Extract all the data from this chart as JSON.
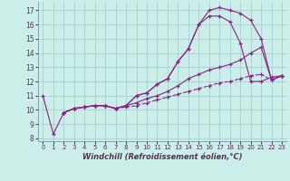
{
  "xlabel": "Windchill (Refroidissement éolien,°C)",
  "bg_color": "#cceee8",
  "line_color": "#882288",
  "grid_color": "#99cccc",
  "xlim": [
    -0.5,
    23.5
  ],
  "ylim": [
    7.8,
    17.6
  ],
  "yticks": [
    8,
    9,
    10,
    11,
    12,
    13,
    14,
    15,
    16,
    17
  ],
  "xticks": [
    0,
    1,
    2,
    3,
    4,
    5,
    6,
    7,
    8,
    9,
    10,
    11,
    12,
    13,
    14,
    15,
    16,
    17,
    18,
    19,
    20,
    21,
    22,
    23
  ],
  "series": [
    {
      "x": [
        0,
        1,
        2,
        3,
        4,
        5,
        6,
        7,
        8,
        9,
        10,
        11,
        12,
        13,
        14,
        15,
        16,
        17,
        18,
        19,
        20,
        21,
        22,
        23
      ],
      "y": [
        11.0,
        8.3,
        9.8,
        10.1,
        10.2,
        10.3,
        10.3,
        10.1,
        10.3,
        11.0,
        11.2,
        11.8,
        12.2,
        13.4,
        14.3,
        16.0,
        17.0,
        17.2,
        17.0,
        16.8,
        16.3,
        15.0,
        12.1,
        12.4
      ],
      "style": "solid"
    },
    {
      "x": [
        2,
        3,
        4,
        5,
        6,
        7,
        8,
        9,
        10,
        11,
        12,
        13,
        14,
        15,
        16,
        17,
        18,
        19,
        20,
        21,
        22,
        23
      ],
      "y": [
        9.8,
        10.1,
        10.2,
        10.3,
        10.3,
        10.1,
        10.3,
        11.0,
        11.2,
        11.8,
        12.2,
        13.4,
        14.3,
        16.0,
        16.6,
        16.6,
        16.2,
        14.7,
        12.0,
        12.0,
        12.3,
        12.4
      ],
      "style": "solid"
    },
    {
      "x": [
        2,
        3,
        4,
        5,
        6,
        7,
        8,
        9,
        10,
        11,
        12,
        13,
        14,
        15,
        16,
        17,
        18,
        19,
        20,
        21,
        22,
        23
      ],
      "y": [
        9.8,
        10.1,
        10.2,
        10.3,
        10.3,
        10.1,
        10.3,
        10.5,
        10.8,
        11.0,
        11.3,
        11.7,
        12.2,
        12.5,
        12.8,
        13.0,
        13.2,
        13.5,
        14.0,
        14.4,
        12.1,
        12.4
      ],
      "style": "solid"
    },
    {
      "x": [
        2,
        3,
        4,
        5,
        6,
        7,
        8,
        9,
        10,
        11,
        12,
        13,
        14,
        15,
        16,
        17,
        18,
        19,
        20,
        21,
        22,
        23
      ],
      "y": [
        9.8,
        10.1,
        10.2,
        10.3,
        10.3,
        10.1,
        10.2,
        10.3,
        10.5,
        10.7,
        10.9,
        11.1,
        11.3,
        11.5,
        11.7,
        11.9,
        12.0,
        12.2,
        12.4,
        12.5,
        12.1,
        12.4
      ],
      "style": "dashed"
    }
  ]
}
